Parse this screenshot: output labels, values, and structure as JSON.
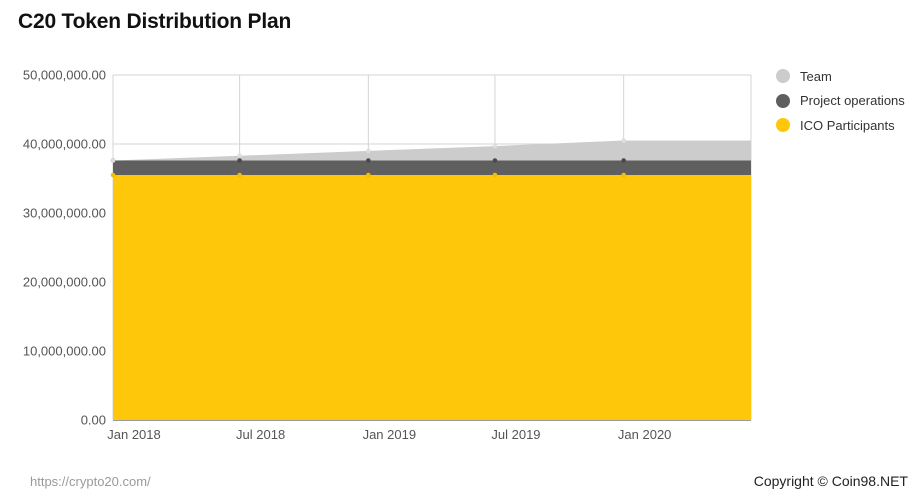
{
  "title": "C20 Token Distribution Plan",
  "footer": {
    "source": "https://crypto20.com/",
    "copyright": "Copyright © Coin98.NET"
  },
  "legend": [
    {
      "label": "Team",
      "color": "#cccccc"
    },
    {
      "label": "Project operations",
      "color": "#5f5f5f"
    },
    {
      "label": "ICO Participants",
      "color": "#fec709"
    }
  ],
  "chart_data": {
    "type": "area",
    "stacked": true,
    "title": "C20 Token Distribution Plan",
    "x": [
      "2018-01-01",
      "2018-07-01",
      "2019-01-01",
      "2019-07-01",
      "2020-01-01",
      "2020-07-01"
    ],
    "x_tick_labels": [
      "Jan 2018",
      "Jul 2018",
      "Jan 2019",
      "Jul 2019",
      "Jan 2020"
    ],
    "y_tick_labels": [
      "0.00",
      "10,000,000.00",
      "20,000,000.00",
      "30,000,000.00",
      "40,000,000.00",
      "50,000,000.00"
    ],
    "ylim": [
      0,
      50000000
    ],
    "grid": true,
    "legend_position": "right",
    "series": [
      {
        "name": "ICO Participants",
        "color": "#fec709",
        "values": [
          35500000,
          35500000,
          35500000,
          35500000,
          35500000,
          35500000
        ]
      },
      {
        "name": "Project operations",
        "color": "#5f5f5f",
        "values": [
          2100000,
          2100000,
          2100000,
          2100000,
          2100000,
          2100000
        ]
      },
      {
        "name": "Team",
        "color": "#cccccc",
        "values": [
          0,
          700000,
          1400000,
          2100000,
          2900000,
          2900000
        ]
      }
    ]
  }
}
